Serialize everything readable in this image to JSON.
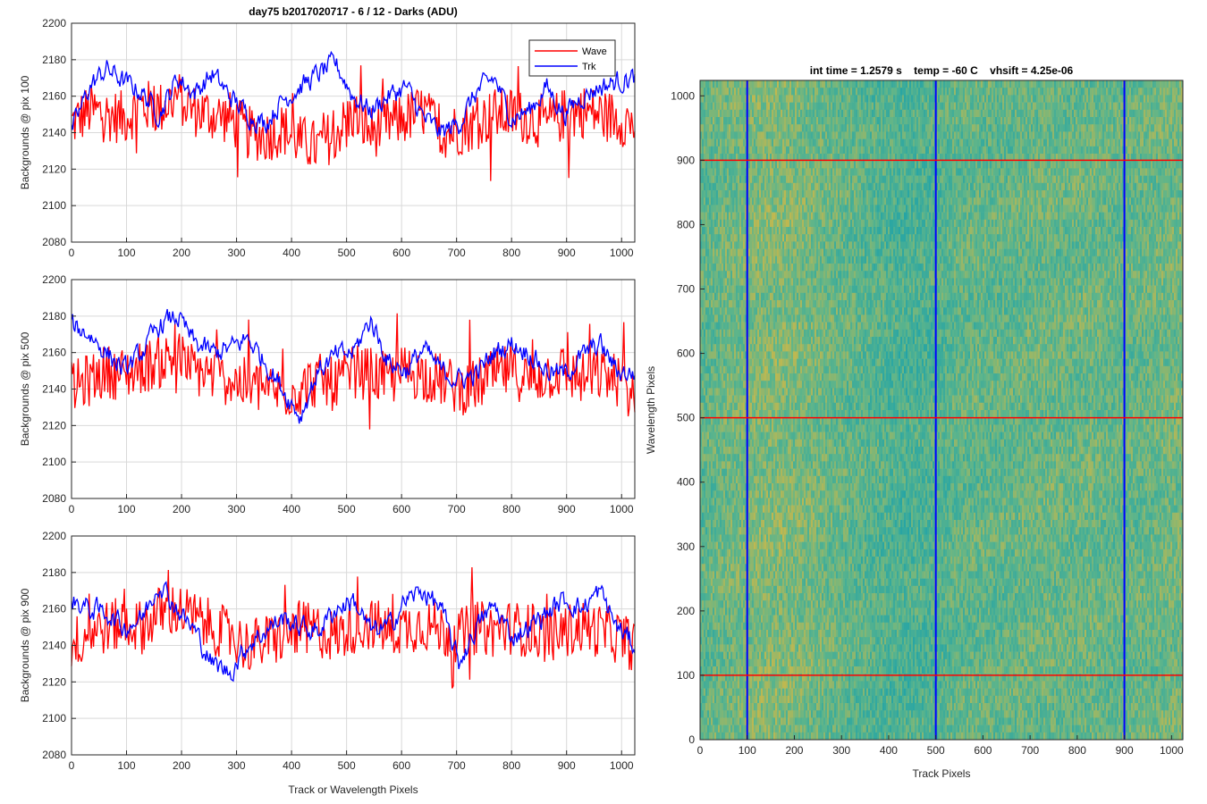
{
  "figure_title": "day75 b2017020717 - 6 / 12 - Darks (ADU)",
  "right_title": "int time = 1.2579 s    temp = -60 C    vhsift = 4.25e-06",
  "colors": {
    "wave": "#ff0000",
    "trk": "#0000ff",
    "grid": "#d9d9d9",
    "axis": "#262626",
    "heat_low": "#1fa3a8",
    "heat_mid": "#5fb58a",
    "heat_high": "#c9b84a"
  },
  "chart_data": [
    {
      "type": "line",
      "ylabel": "Backgrounds @ pix 100",
      "xlabel": "",
      "xlim": [
        0,
        1024
      ],
      "ylim": [
        2080,
        2200
      ],
      "xticks": [
        "0",
        "100",
        "200",
        "300",
        "400",
        "500",
        "600",
        "700",
        "800",
        "900",
        "1000"
      ],
      "yticks": [
        "2080",
        "2100",
        "2120",
        "2140",
        "2160",
        "2180",
        "2200"
      ],
      "grid": true,
      "legend": {
        "position": "top-right",
        "entries": [
          "Wave",
          "Trk"
        ]
      },
      "series": [
        {
          "name": "Wave",
          "color": "#ff0000",
          "x": [
            0,
            32,
            64,
            96,
            128,
            160,
            192,
            224,
            256,
            288,
            320,
            352,
            384,
            416,
            448,
            480,
            512,
            544,
            576,
            608,
            640,
            672,
            704,
            736,
            768,
            800,
            832,
            864,
            896,
            928,
            960,
            992,
            1024
          ],
          "values": [
            2145,
            2152,
            2150,
            2148,
            2155,
            2153,
            2160,
            2152,
            2150,
            2148,
            2140,
            2138,
            2142,
            2135,
            2132,
            2140,
            2150,
            2140,
            2145,
            2148,
            2152,
            2140,
            2142,
            2145,
            2150,
            2150,
            2148,
            2145,
            2150,
            2152,
            2150,
            2148,
            2145
          ]
        },
        {
          "name": "Trk",
          "color": "#0000ff",
          "x": [
            0,
            32,
            64,
            96,
            128,
            160,
            192,
            224,
            256,
            288,
            320,
            352,
            384,
            416,
            448,
            480,
            512,
            544,
            576,
            608,
            640,
            672,
            704,
            736,
            768,
            800,
            832,
            864,
            896,
            928,
            960,
            992,
            1024
          ],
          "values": [
            2140,
            2165,
            2175,
            2168,
            2162,
            2150,
            2170,
            2162,
            2172,
            2160,
            2150,
            2145,
            2158,
            2165,
            2172,
            2178,
            2160,
            2152,
            2160,
            2165,
            2148,
            2140,
            2145,
            2162,
            2170,
            2148,
            2152,
            2165,
            2150,
            2160,
            2165,
            2168,
            2170
          ]
        }
      ]
    },
    {
      "type": "line",
      "ylabel": "Backgrounds @ pix 500",
      "xlabel": "",
      "xlim": [
        0,
        1024
      ],
      "ylim": [
        2080,
        2200
      ],
      "xticks": [
        "0",
        "100",
        "200",
        "300",
        "400",
        "500",
        "600",
        "700",
        "800",
        "900",
        "1000"
      ],
      "yticks": [
        "2080",
        "2100",
        "2120",
        "2140",
        "2160",
        "2180",
        "2200"
      ],
      "grid": true,
      "series": [
        {
          "name": "Wave",
          "color": "#ff0000",
          "x": [
            0,
            32,
            64,
            96,
            128,
            160,
            192,
            224,
            256,
            288,
            320,
            352,
            384,
            416,
            448,
            480,
            512,
            544,
            576,
            608,
            640,
            672,
            704,
            736,
            768,
            800,
            832,
            864,
            896,
            928,
            960,
            992,
            1024
          ],
          "values": [
            2140,
            2145,
            2150,
            2148,
            2152,
            2155,
            2158,
            2150,
            2148,
            2145,
            2142,
            2140,
            2138,
            2140,
            2145,
            2142,
            2150,
            2148,
            2145,
            2150,
            2148,
            2145,
            2140,
            2142,
            2148,
            2150,
            2145,
            2148,
            2150,
            2145,
            2148,
            2145,
            2140
          ]
        },
        {
          "name": "Trk",
          "color": "#0000ff",
          "x": [
            0,
            32,
            64,
            96,
            128,
            160,
            192,
            224,
            256,
            288,
            320,
            352,
            384,
            416,
            448,
            480,
            512,
            544,
            576,
            608,
            640,
            672,
            704,
            736,
            768,
            800,
            832,
            864,
            896,
            928,
            960,
            992,
            1024
          ],
          "values": [
            2175,
            2170,
            2160,
            2150,
            2160,
            2175,
            2180,
            2165,
            2160,
            2162,
            2168,
            2155,
            2140,
            2125,
            2150,
            2158,
            2160,
            2178,
            2155,
            2150,
            2162,
            2150,
            2145,
            2148,
            2160,
            2165,
            2160,
            2150,
            2148,
            2158,
            2165,
            2150,
            2148
          ]
        }
      ]
    },
    {
      "type": "line",
      "ylabel": "Backgrounds @ pix 900",
      "xlabel": "Track or Wavelength Pixels",
      "xlim": [
        0,
        1024
      ],
      "ylim": [
        2080,
        2200
      ],
      "xticks": [
        "0",
        "100",
        "200",
        "300",
        "400",
        "500",
        "600",
        "700",
        "800",
        "900",
        "1000"
      ],
      "yticks": [
        "2080",
        "2100",
        "2120",
        "2140",
        "2160",
        "2180",
        "2200"
      ],
      "grid": true,
      "series": [
        {
          "name": "Wave",
          "color": "#ff0000",
          "x": [
            0,
            32,
            64,
            96,
            128,
            160,
            192,
            224,
            256,
            288,
            320,
            352,
            384,
            416,
            448,
            480,
            512,
            544,
            576,
            608,
            640,
            672,
            704,
            736,
            768,
            800,
            832,
            864,
            896,
            928,
            960,
            992,
            1024
          ],
          "values": [
            2140,
            2148,
            2150,
            2152,
            2150,
            2158,
            2160,
            2155,
            2150,
            2145,
            2140,
            2142,
            2145,
            2150,
            2148,
            2145,
            2150,
            2152,
            2148,
            2150,
            2152,
            2148,
            2145,
            2150,
            2148,
            2150,
            2148,
            2145,
            2148,
            2150,
            2148,
            2145,
            2140
          ]
        },
        {
          "name": "Trk",
          "color": "#0000ff",
          "x": [
            0,
            32,
            64,
            96,
            128,
            160,
            192,
            224,
            256,
            288,
            320,
            352,
            384,
            416,
            448,
            480,
            512,
            544,
            576,
            608,
            640,
            672,
            704,
            736,
            768,
            800,
            832,
            864,
            896,
            928,
            960,
            992,
            1024
          ],
          "values": [
            2165,
            2160,
            2158,
            2150,
            2155,
            2175,
            2160,
            2148,
            2130,
            2125,
            2140,
            2148,
            2155,
            2150,
            2148,
            2160,
            2165,
            2148,
            2150,
            2165,
            2170,
            2160,
            2130,
            2150,
            2162,
            2145,
            2150,
            2158,
            2165,
            2160,
            2170,
            2150,
            2140
          ]
        }
      ]
    },
    {
      "type": "heatmap",
      "title": "int time = 1.2579 s    temp = -60 C    vhsift = 4.25e-06",
      "xlabel": "Track Pixels",
      "ylabel": "Wavelength Pixels",
      "xlim": [
        0,
        1024
      ],
      "ylim": [
        0,
        1024
      ],
      "xticks": [
        "0",
        "100",
        "200",
        "300",
        "400",
        "500",
        "600",
        "700",
        "800",
        "900",
        "1000"
      ],
      "yticks": [
        "0",
        "100",
        "200",
        "300",
        "400",
        "500",
        "600",
        "700",
        "800",
        "900",
        "1000"
      ],
      "column_profile": [
        0.45,
        0.55,
        0.62,
        0.66,
        0.64,
        0.58,
        0.52,
        0.45,
        0.4,
        0.35,
        0.38,
        0.46,
        0.5,
        0.48,
        0.52,
        0.55,
        0.52,
        0.55,
        0.5,
        0.52,
        0.55,
        0.58
      ],
      "vertical_markers": {
        "color": "#0000ff",
        "x": [
          100,
          500,
          900
        ]
      },
      "horizontal_markers": {
        "color": "#ff0000",
        "y": [
          100,
          500,
          900
        ]
      }
    }
  ]
}
